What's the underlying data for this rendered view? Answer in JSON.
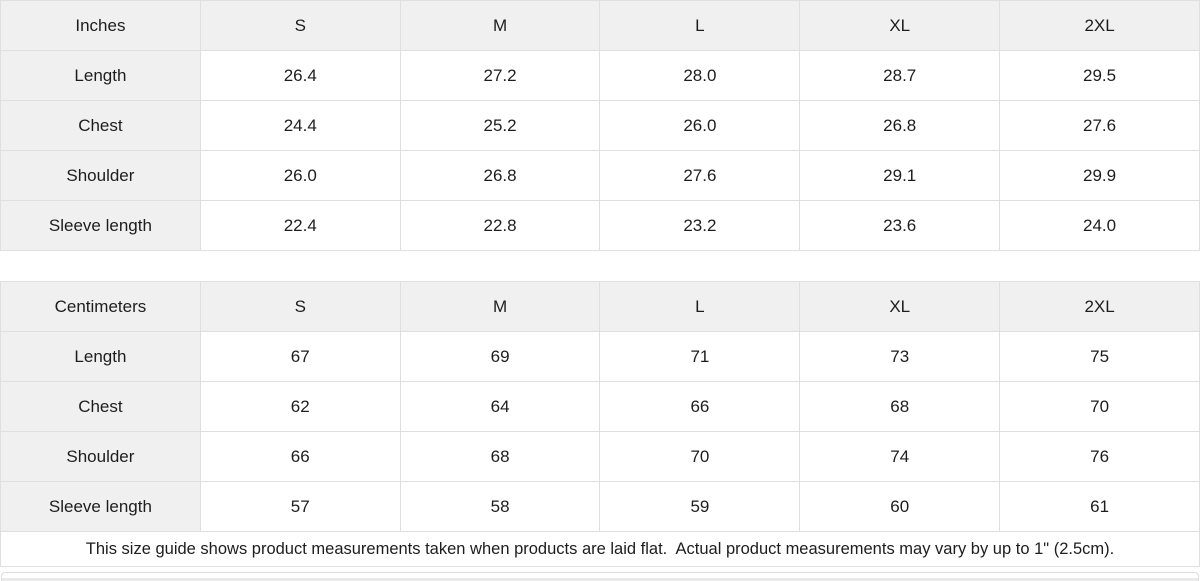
{
  "colors": {
    "header_cell_bg": "#f0f0f0",
    "cell_border": "#dfdfdf",
    "text": "#1d1d1d",
    "page_bg": "#ffffff",
    "stub_bg": "#e9e9e9"
  },
  "chart_data": [
    {
      "type": "table",
      "title": "Inches",
      "columns": [
        "Inches",
        "S",
        "M",
        "L",
        "XL",
        "2XL"
      ],
      "rows": [
        [
          "Length",
          "26.4",
          "27.2",
          "28.0",
          "28.7",
          "29.5"
        ],
        [
          "Chest",
          "24.4",
          "25.2",
          "26.0",
          "26.8",
          "27.6"
        ],
        [
          "Shoulder",
          "26.0",
          "26.8",
          "27.6",
          "29.1",
          "29.9"
        ],
        [
          "Sleeve length",
          "22.4",
          "22.8",
          "23.2",
          "23.6",
          "24.0"
        ]
      ]
    },
    {
      "type": "table",
      "title": "Centimeters",
      "columns": [
        "Centimeters",
        "S",
        "M",
        "L",
        "XL",
        "2XL"
      ],
      "rows": [
        [
          "Length",
          "67",
          "69",
          "71",
          "73",
          "75"
        ],
        [
          "Chest",
          "62",
          "64",
          "66",
          "68",
          "70"
        ],
        [
          "Shoulder",
          "66",
          "68",
          "70",
          "74",
          "76"
        ],
        [
          "Sleeve length",
          "57",
          "58",
          "59",
          "60",
          "61"
        ]
      ]
    }
  ],
  "footer_note": "This size guide shows product measurements taken when products are laid flat.  Actual product measurements may vary by up to 1\" (2.5cm)."
}
